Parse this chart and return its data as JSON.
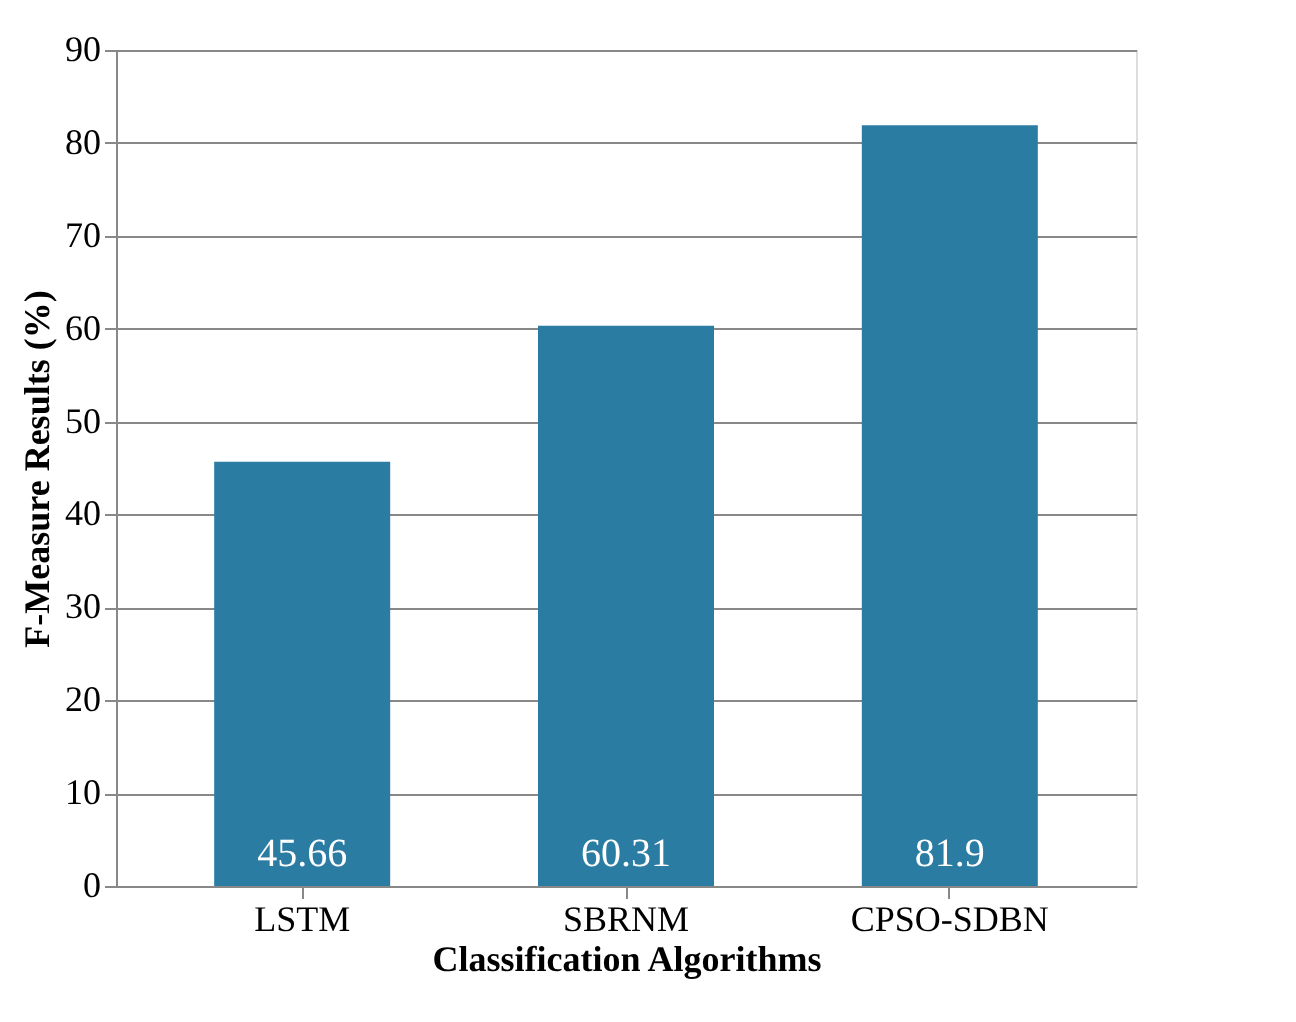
{
  "chart_data": {
    "type": "bar",
    "xlabel": "Classification Algorithms",
    "ylabel": "F-Measure Results (%)",
    "categories": [
      "LSTM",
      "SBRNM",
      "CPSO-SDBN"
    ],
    "values": [
      45.66,
      60.31,
      81.9
    ],
    "color": "#2a7ca3",
    "ylim": [
      0,
      90
    ],
    "yticks": [
      0,
      10,
      20,
      30,
      40,
      50,
      60,
      70,
      80,
      90
    ],
    "grid": "y",
    "data_labels": true
  }
}
